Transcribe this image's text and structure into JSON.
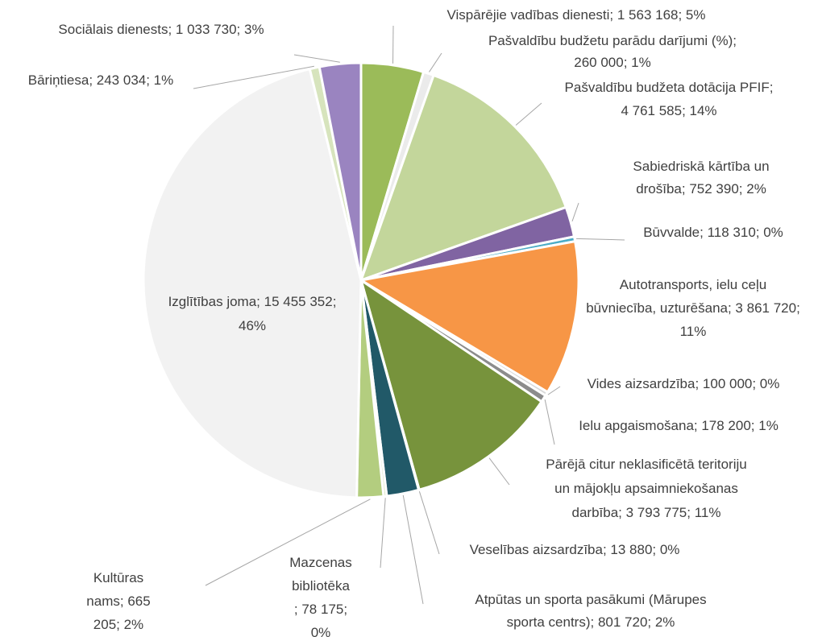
{
  "chart_data": {
    "type": "pie",
    "values": [
      1563168,
      260000,
      4761585,
      752390,
      118310,
      3861720,
      100000,
      178200,
      3793775,
      13880,
      801720,
      78175,
      665205,
      15455352,
      243034,
      1033730
    ],
    "value_labels": [
      [
        "Vispārējie vadības dienesti; 1 563 168; 5%"
      ],
      [
        "Pašvaldību budžetu parādu darījumi (%);",
        "260 000; 1%"
      ],
      [
        "Pašvaldību budžeta dotācija PFIF;",
        "4 761 585; 14%"
      ],
      [
        "Sabiedriskā kārtība un",
        "drošība; 752 390; 2%"
      ],
      [
        "Būvvalde; 118 310; 0%"
      ],
      [
        "Autotransports, ielu ceļu",
        "būvniecība, uzturēšana; 3 861 720;",
        "11%"
      ],
      [
        "Vides aizsardzība; 100 000; 0%"
      ],
      [
        "Ielu apgaismošana; 178 200; 1%"
      ],
      [
        "Pārējā citur neklasificētā teritoriju",
        "un mājokļu apsaimniekošanas",
        "darbība; 3 793 775; 11%"
      ],
      [
        "Veselības aizsardzība; 13 880; 0%"
      ],
      [
        "Atpūtas un sporta pasākumi (Mārupes",
        "sporta centrs); 801 720; 2%"
      ],
      [
        "Mazcenas",
        "bibliotēka",
        "; 78 175;",
        "0%"
      ],
      [
        "Kultūras",
        "nams; 665",
        "205; 2%"
      ],
      [
        "Izglītības joma; 15 455 352;",
        "46%"
      ],
      [
        "Bāriņtiesa; 243 034; 1%"
      ],
      [
        "Sociālais dienests; 1 033 730; 3%"
      ]
    ],
    "colors": [
      "#9bbb59",
      "#ebebeb",
      "#c3d69b",
      "#8064a2",
      "#4bacc6",
      "#f79646",
      "#d9d9d9",
      "#8c8c8c",
      "#77933c",
      "#4f81bd",
      "#215968",
      "#d7e4bd",
      "#b3cd7f",
      "#f2f2f2",
      "#d7e4bd",
      "#9a84c0"
    ]
  }
}
